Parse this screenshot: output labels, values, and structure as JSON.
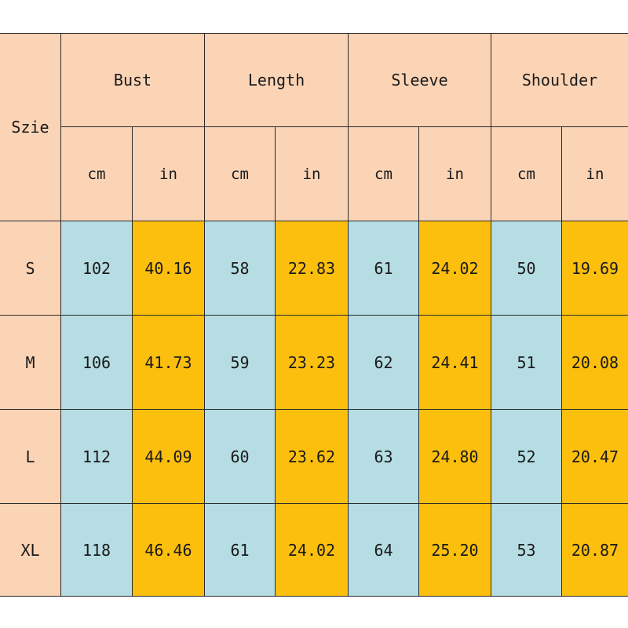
{
  "header": {
    "size_label": "Szie",
    "groups": [
      "Bust",
      "Length",
      "Sleeve",
      "Shoulder"
    ],
    "units": [
      "cm",
      "in",
      "cm",
      "in",
      "cm",
      "in",
      "cm",
      "in"
    ]
  },
  "rows": [
    {
      "size": "S",
      "values": [
        "102",
        "40.16",
        "58",
        "22.83",
        "61",
        "24.02",
        "50",
        "19.69"
      ]
    },
    {
      "size": "M",
      "values": [
        "106",
        "41.73",
        "59",
        "23.23",
        "62",
        "24.41",
        "51",
        "20.08"
      ]
    },
    {
      "size": "L",
      "values": [
        "112",
        "44.09",
        "60",
        "23.62",
        "63",
        "24.80",
        "52",
        "20.47"
      ]
    },
    {
      "size": "XL",
      "values": [
        "118",
        "46.46",
        "61",
        "24.02",
        "64",
        "25.20",
        "53",
        "20.87"
      ]
    }
  ],
  "colors": {
    "header_bg": "#fbd3b5",
    "cm_bg": "#b5dde3",
    "in_bg": "#fcbf0e",
    "border": "#2b2b2b"
  }
}
